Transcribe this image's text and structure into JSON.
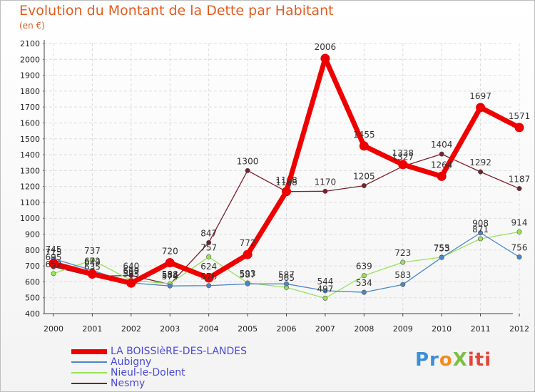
{
  "chart_data": {
    "type": "line",
    "title": "Evolution du Montant de la Dette par Habitant",
    "subtitle": "(en €)",
    "xlabel": "",
    "ylabel": "",
    "ylim": [
      400,
      2100
    ],
    "yticks": [
      400,
      500,
      600,
      700,
      800,
      900,
      1000,
      1100,
      1200,
      1300,
      1400,
      1500,
      1600,
      1700,
      1800,
      1900,
      2000,
      2100
    ],
    "grid": true,
    "legend_position": "bottom-left",
    "x": [
      "2000",
      "2001",
      "2002",
      "2003",
      "2004",
      "2005",
      "2006",
      "2007",
      "2008",
      "2009",
      "2010",
      "2011",
      "2012"
    ],
    "series": [
      {
        "name": "Nesmy",
        "color": "#7a1f2a",
        "values": [
          695,
          635,
          640,
          584,
          847,
          1300,
          1168,
          1170,
          1205,
          1327,
          1404,
          1292,
          1187
        ]
      },
      {
        "name": "Nieul-le-Dolent",
        "color": "#9be05a",
        "values": [
          652,
          737,
          610,
          588,
          757,
          593,
          565,
          497,
          639,
          723,
          755,
          871,
          914
        ]
      },
      {
        "name": "Aubigny",
        "color": "#4a86c8",
        "values": [
          745,
          672,
          593,
          574,
          576,
          587,
          587,
          544,
          534,
          583,
          753,
          908,
          756
        ]
      },
      {
        "name": "LA BOISSIèRE-DES-LANDES",
        "color": "#ee0000",
        "values": [
          715,
          649,
          592,
          720,
          624,
          772,
          1168,
          2006,
          1455,
          1338,
          1264,
          1697,
          1571
        ]
      }
    ]
  },
  "legend": {
    "items": [
      {
        "label": "LA BOISSIèRE-DES-LANDES",
        "color": "#ee0000"
      },
      {
        "label": "Aubigny",
        "color": "#4a86c8"
      },
      {
        "label": "Nieul-le-Dolent",
        "color": "#9be05a"
      },
      {
        "label": "Nesmy",
        "color": "#7a1f2a"
      }
    ]
  },
  "logo": {
    "p1": "Pr",
    "p2": "o",
    "p3": "X",
    "p4": "iti"
  }
}
